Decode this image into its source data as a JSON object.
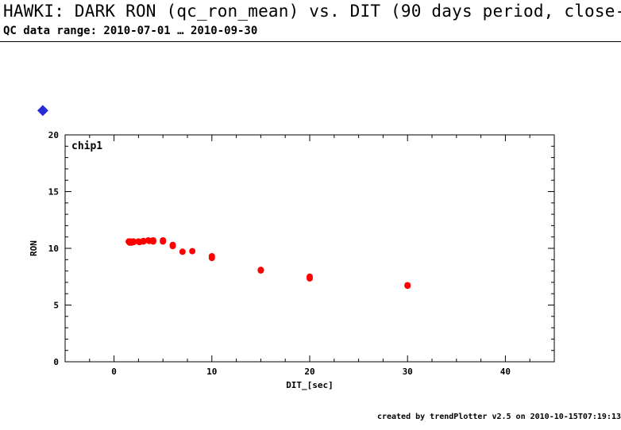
{
  "header": {
    "title": "HAWKI: DARK RON (qc_ron_mean) vs. DIT (90 days period, close-",
    "subtitle": "QC data range: 2010-07-01 … 2010-09-30"
  },
  "marker_icon": "diamond-question-icon",
  "footer": {
    "credit": "created by trendPlotter v2.5 on 2010-10-15T07:19:13"
  },
  "chart_data": {
    "type": "scatter",
    "panel_label": "chip1",
    "xlabel": "DIT_[sec]",
    "ylabel": "RON",
    "xlim": [
      -5,
      45
    ],
    "ylim": [
      0,
      20
    ],
    "xticks": [
      0,
      10,
      20,
      30,
      40
    ],
    "yticks": [
      0,
      5,
      10,
      15,
      20
    ],
    "point_color": "#ff0000",
    "series": [
      {
        "x": [
          1.5,
          1.6,
          1.7,
          1.8,
          2.0,
          2.0,
          2.5,
          2.6,
          3.0,
          3.0,
          3.5,
          3.6,
          4.0,
          4.0,
          5.0,
          5.0,
          6.0,
          6.0,
          7.0,
          8.0,
          10.0,
          10.0,
          15.0,
          15.0,
          20.0,
          20.0,
          30.0,
          30.0
        ],
        "y": [
          10.6,
          10.5,
          10.6,
          10.5,
          10.6,
          10.55,
          10.6,
          10.55,
          10.65,
          10.6,
          10.7,
          10.65,
          10.7,
          10.6,
          10.7,
          10.6,
          10.3,
          10.2,
          9.7,
          9.75,
          9.3,
          9.15,
          8.1,
          8.05,
          7.5,
          7.35,
          6.75,
          6.7
        ]
      }
    ]
  }
}
